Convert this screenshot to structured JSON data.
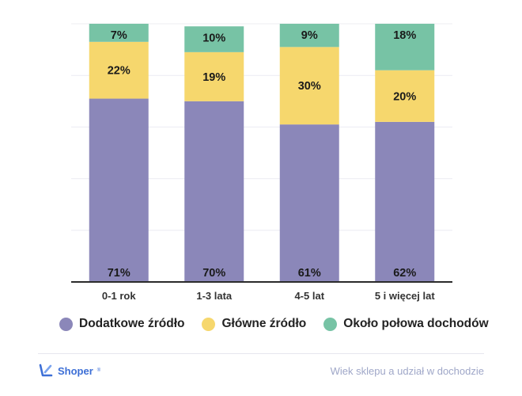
{
  "chart_data": {
    "type": "bar",
    "stacked": true,
    "categories": [
      "0-1 rok",
      "1-3 lata",
      "4-5 lat",
      "5 i więcej lat"
    ],
    "series": [
      {
        "name": "Dodatkowe źródło",
        "values": [
          71,
          70,
          61,
          62
        ],
        "color": "#8b87b9"
      },
      {
        "name": "Główne źródło",
        "values": [
          22,
          19,
          30,
          20
        ],
        "color": "#f6d76d"
      },
      {
        "name": "Około połowa dochodów",
        "values": [
          7,
          10,
          9,
          18
        ],
        "color": "#77c3a5"
      }
    ],
    "value_suffix": "%",
    "ylim": [
      0,
      100
    ],
    "grid": true,
    "legend_position": "bottom"
  },
  "footer": {
    "brand": "Shoper",
    "brand_mark": "®",
    "caption": "Wiek sklepu a udział w dochodzie"
  }
}
